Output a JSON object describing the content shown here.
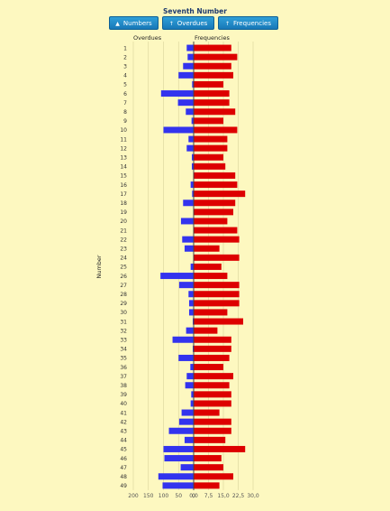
{
  "page": {
    "title": "Seventh Number"
  },
  "toolbar": {
    "numbers_label": "Numbers",
    "overdues_label": "Overdues",
    "frequencies_label": "Frequencies",
    "numbers_icon": "arrow-up-icon",
    "overdues_icon": "arrow-up-icon",
    "frequencies_icon": "arrow-up-icon"
  },
  "chart_data": {
    "type": "bar",
    "orientation": "horizontal-diverging",
    "ylabel": "Number",
    "categories": [
      "1",
      "2",
      "3",
      "4",
      "5",
      "6",
      "7",
      "8",
      "9",
      "10",
      "11",
      "12",
      "13",
      "14",
      "15",
      "16",
      "17",
      "18",
      "19",
      "20",
      "21",
      "22",
      "23",
      "24",
      "25",
      "26",
      "27",
      "28",
      "29",
      "30",
      "31",
      "32",
      "33",
      "34",
      "35",
      "36",
      "37",
      "38",
      "39",
      "40",
      "41",
      "42",
      "43",
      "44",
      "45",
      "46",
      "47",
      "48",
      "49"
    ],
    "series": [
      {
        "name": "Overdues",
        "color": "#3333ee",
        "axis_ticks": [
          "200",
          "150",
          "100",
          "50",
          "0"
        ],
        "xlim": [
          0,
          200
        ],
        "values": [
          23,
          20,
          35,
          50,
          5,
          108,
          52,
          26,
          7,
          100,
          17,
          23,
          6,
          6,
          0,
          10,
          5,
          35,
          0,
          42,
          0,
          38,
          30,
          0,
          10,
          110,
          48,
          17,
          15,
          15,
          3,
          25,
          70,
          3,
          50,
          11,
          23,
          28,
          8,
          10,
          40,
          48,
          82,
          30,
          100,
          97,
          43,
          117,
          103
        ]
      },
      {
        "name": "Frequencies",
        "color": "#dd0000",
        "axis_ticks": [
          "0,0",
          "7,5",
          "15,0",
          "22,5",
          "30,0"
        ],
        "xlim": [
          0,
          30
        ],
        "values": [
          19,
          22,
          19,
          20,
          15,
          18,
          18,
          21,
          15,
          22,
          17,
          17,
          15,
          16,
          21,
          22,
          26,
          21,
          20,
          17,
          22,
          23,
          13,
          23,
          14,
          17,
          23,
          23,
          23,
          17,
          25,
          12,
          19,
          19,
          18,
          15,
          20,
          18,
          19,
          19,
          13,
          19,
          19,
          16,
          26,
          14,
          15,
          20,
          13
        ]
      }
    ],
    "grid": true
  }
}
